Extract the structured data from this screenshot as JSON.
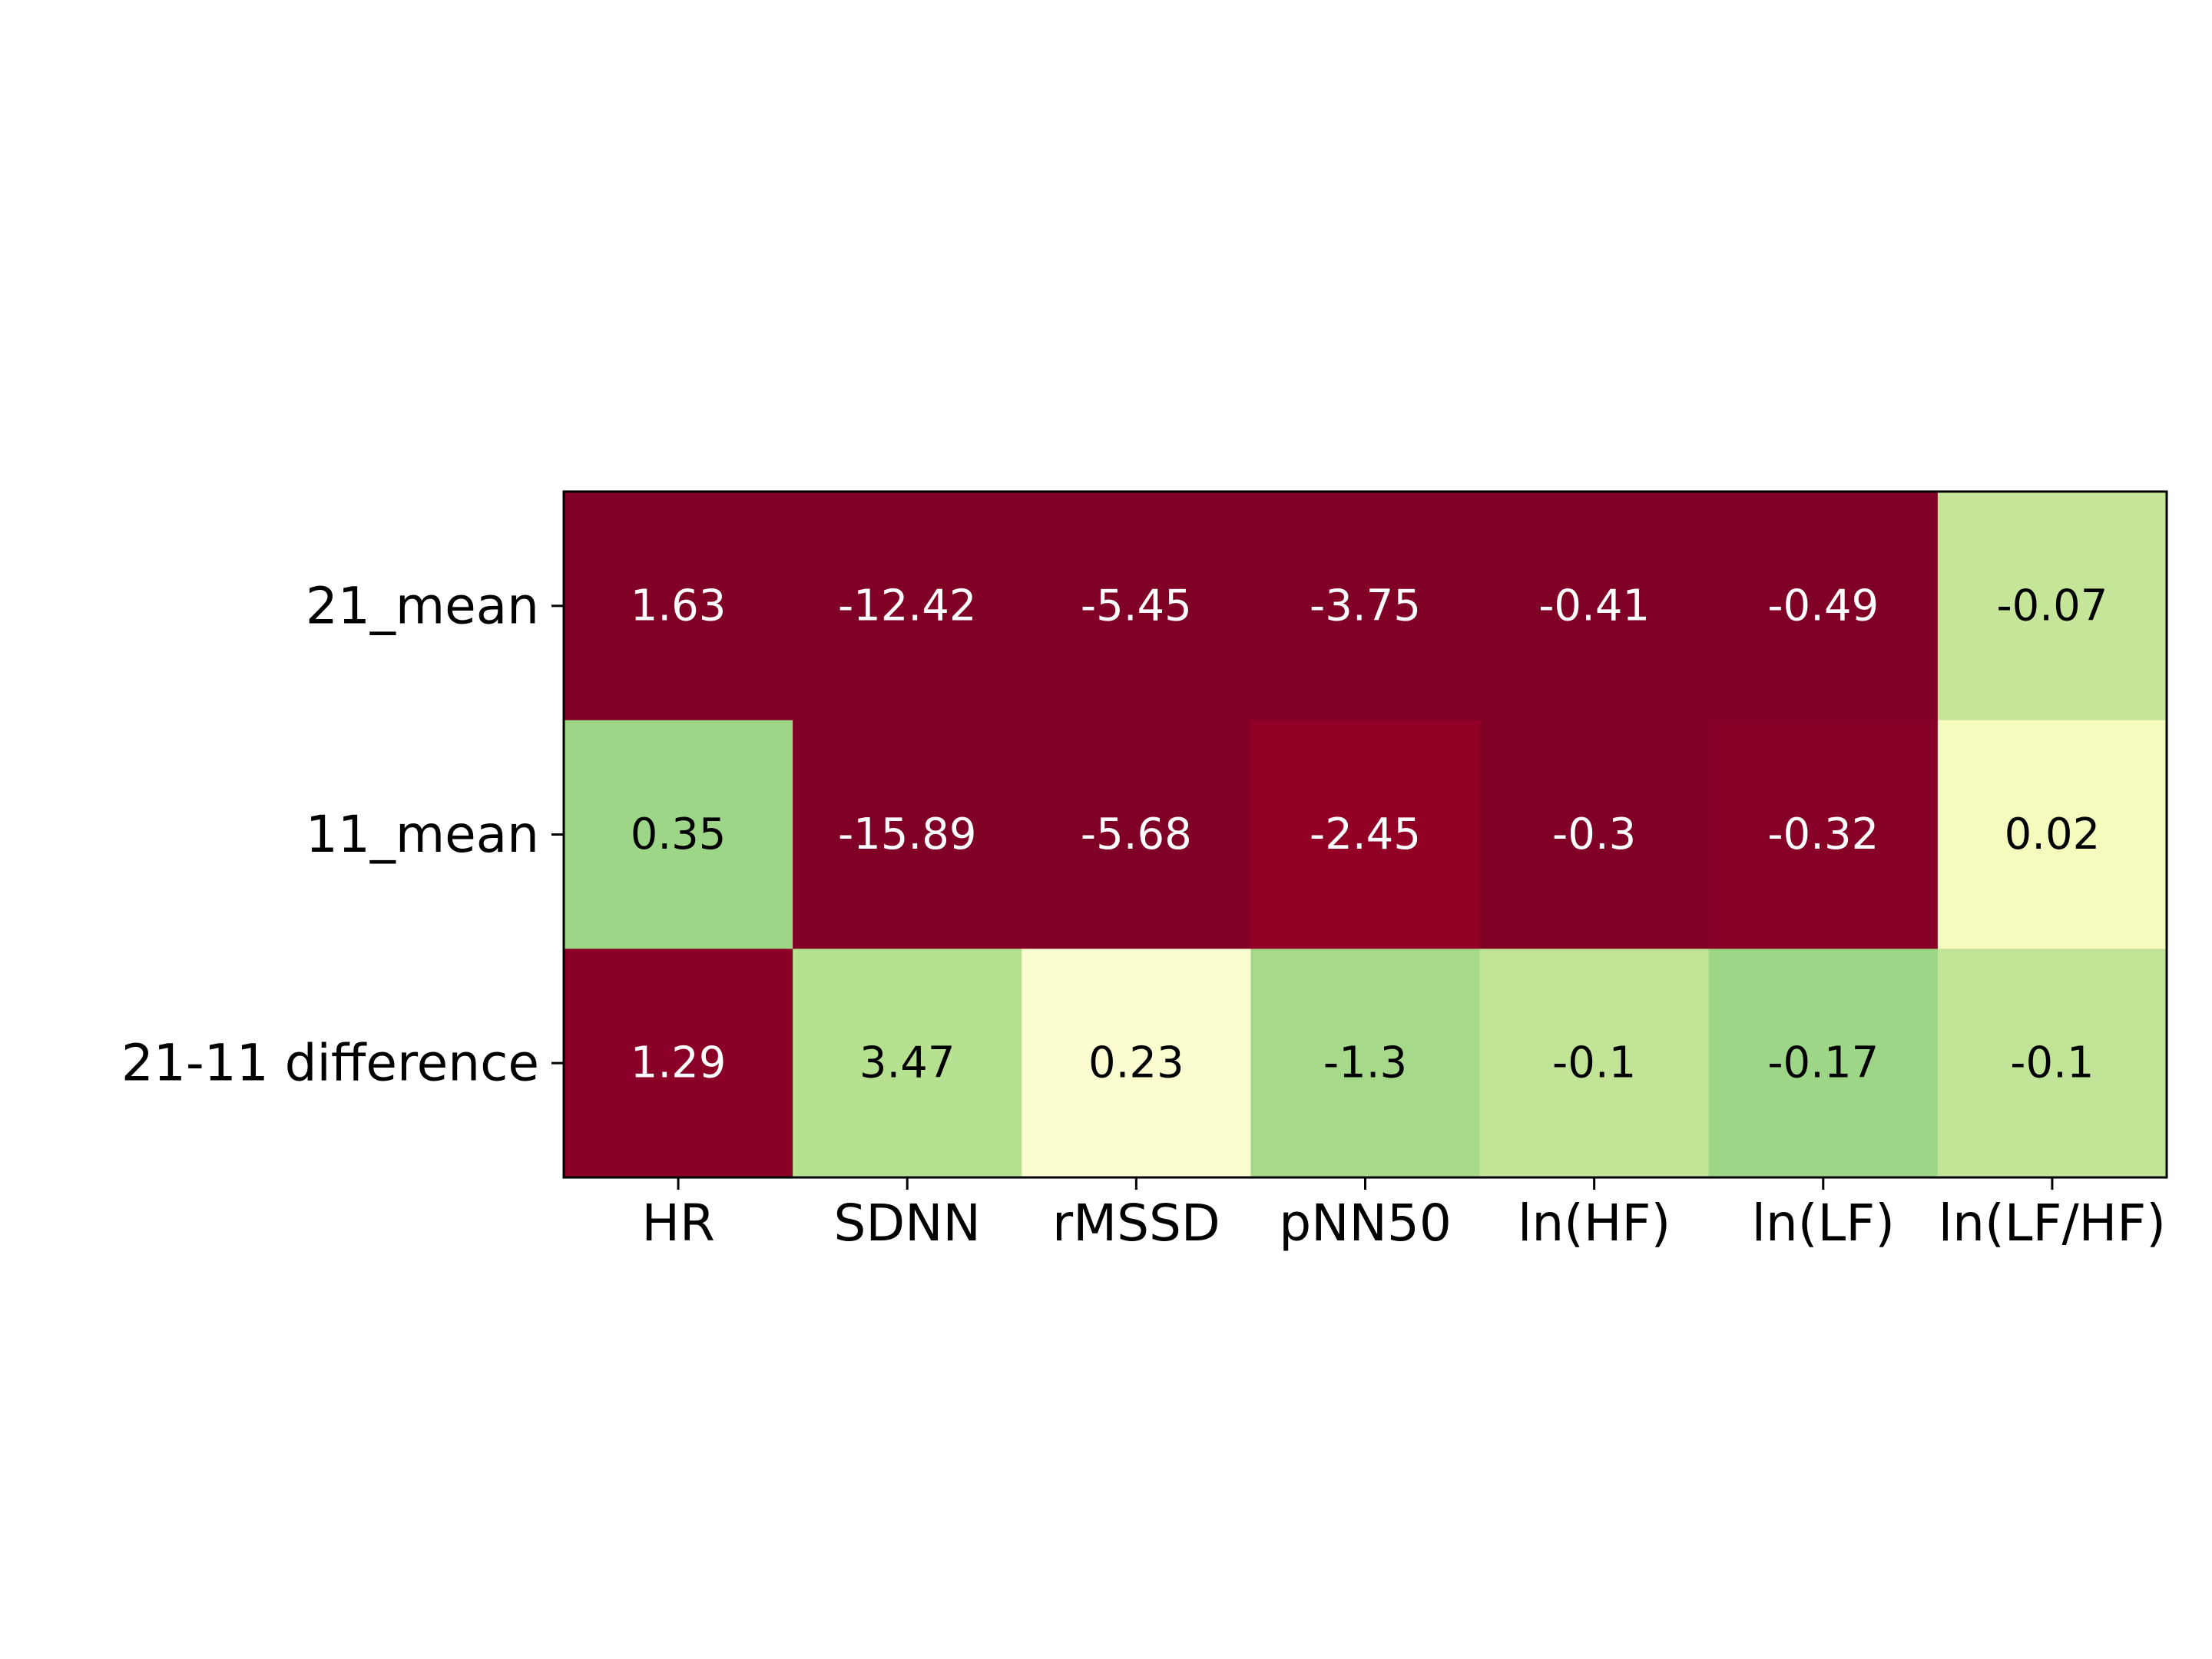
{
  "chart_data": {
    "type": "heatmap",
    "title": "",
    "xlabel": "",
    "ylabel": "",
    "columns": [
      "HR",
      "SDNN",
      "rMSSD",
      "pNN50",
      "ln(HF)",
      "ln(LF)",
      "ln(LF/HF)"
    ],
    "rows": [
      "21_mean",
      "11_mean",
      "21-11 difference"
    ],
    "values": [
      [
        1.63,
        -12.42,
        -5.45,
        -3.75,
        -0.41,
        -0.49,
        -0.07
      ],
      [
        0.35,
        -15.89,
        -5.68,
        -2.45,
        -0.3,
        -0.32,
        0.02
      ],
      [
        1.29,
        3.47,
        0.23,
        -1.3,
        -0.1,
        -0.17,
        -0.1
      ]
    ],
    "cell_labels": [
      [
        "1.63",
        "-12.42",
        "-5.45",
        "-3.75",
        "-0.41",
        "-0.49",
        "-0.07"
      ],
      [
        "0.35",
        "-15.89",
        "-5.68",
        "-2.45",
        "-0.3",
        "-0.32",
        "0.02"
      ],
      [
        "1.29",
        "3.47",
        "0.23",
        "-1.3",
        "-0.1",
        "-0.17",
        "-0.1"
      ]
    ],
    "cell_colors": [
      [
        "#800026",
        "#800026",
        "#800026",
        "#800026",
        "#800026",
        "#800026",
        "#c5e698"
      ],
      [
        "#9dd686",
        "#800026",
        "#800026",
        "#930026",
        "#800026",
        "#870026",
        "#f5fbbd"
      ],
      [
        "#8a0026",
        "#b6e190",
        "#fbfdd1",
        "#a6da8a",
        "#c1e496",
        "#9dd686",
        "#c1e496"
      ]
    ],
    "label_colors": [
      [
        "#ffffff",
        "#ffffff",
        "#ffffff",
        "#ffffff",
        "#ffffff",
        "#ffffff",
        "#000000"
      ],
      [
        "#000000",
        "#ffffff",
        "#ffffff",
        "#ffffff",
        "#ffffff",
        "#ffffff",
        "#000000"
      ],
      [
        "#ffffff",
        "#000000",
        "#000000",
        "#000000",
        "#000000",
        "#000000",
        "#000000"
      ]
    ],
    "colormap": "RdYlGn",
    "grid": false,
    "legend": "none"
  }
}
